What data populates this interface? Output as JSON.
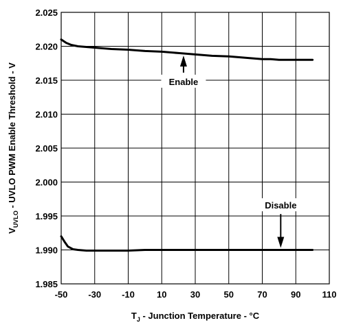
{
  "chart_data": {
    "type": "line",
    "xlabel_main": "T",
    "xlabel_sub": "J",
    "xlabel_rest": " - Junction Temperature - °C",
    "ylabel_main": "V",
    "ylabel_sub": "UVLO",
    "ylabel_rest": " - UVLO PWM Enable Threshold - V",
    "xlim": [
      -50,
      110
    ],
    "ylim": [
      1.985,
      2.025
    ],
    "x_ticks": [
      -50,
      -30,
      -10,
      10,
      30,
      50,
      70,
      90,
      110
    ],
    "y_ticks": [
      "1.985",
      "1.990",
      "1.995",
      "2.000",
      "2.005",
      "2.010",
      "2.015",
      "2.020",
      "2.025"
    ],
    "grid": true,
    "series": [
      {
        "name": "Enable",
        "x": [
          -50,
          -47,
          -44,
          -40,
          -35,
          -30,
          -20,
          -10,
          0,
          10,
          20,
          30,
          40,
          50,
          60,
          70,
          75,
          80,
          90,
          100
        ],
        "y": [
          2.021,
          2.0205,
          2.0202,
          2.02,
          2.0199,
          2.0198,
          2.0196,
          2.0195,
          2.0193,
          2.0192,
          2.019,
          2.0188,
          2.0186,
          2.0185,
          2.0183,
          2.0181,
          2.0181,
          2.018,
          2.018,
          2.018
        ]
      },
      {
        "name": "Disable",
        "x": [
          -50,
          -48,
          -46,
          -43,
          -40,
          -35,
          -30,
          -20,
          -10,
          0,
          10,
          30,
          50,
          70,
          90,
          100
        ],
        "y": [
          1.992,
          1.9912,
          1.9905,
          1.9901,
          1.99,
          1.9899,
          1.9899,
          1.9899,
          1.9899,
          1.99,
          1.99,
          1.99,
          1.99,
          1.99,
          1.99,
          1.99
        ]
      }
    ],
    "annotations": [
      {
        "text": "Enable",
        "series": "Enable",
        "arrow_x": 23,
        "label_y": 2.0145,
        "direction": "up"
      },
      {
        "text": "Disable",
        "series": "Disable",
        "arrow_x": 81,
        "label_y": 1.9963,
        "direction": "down"
      }
    ]
  }
}
